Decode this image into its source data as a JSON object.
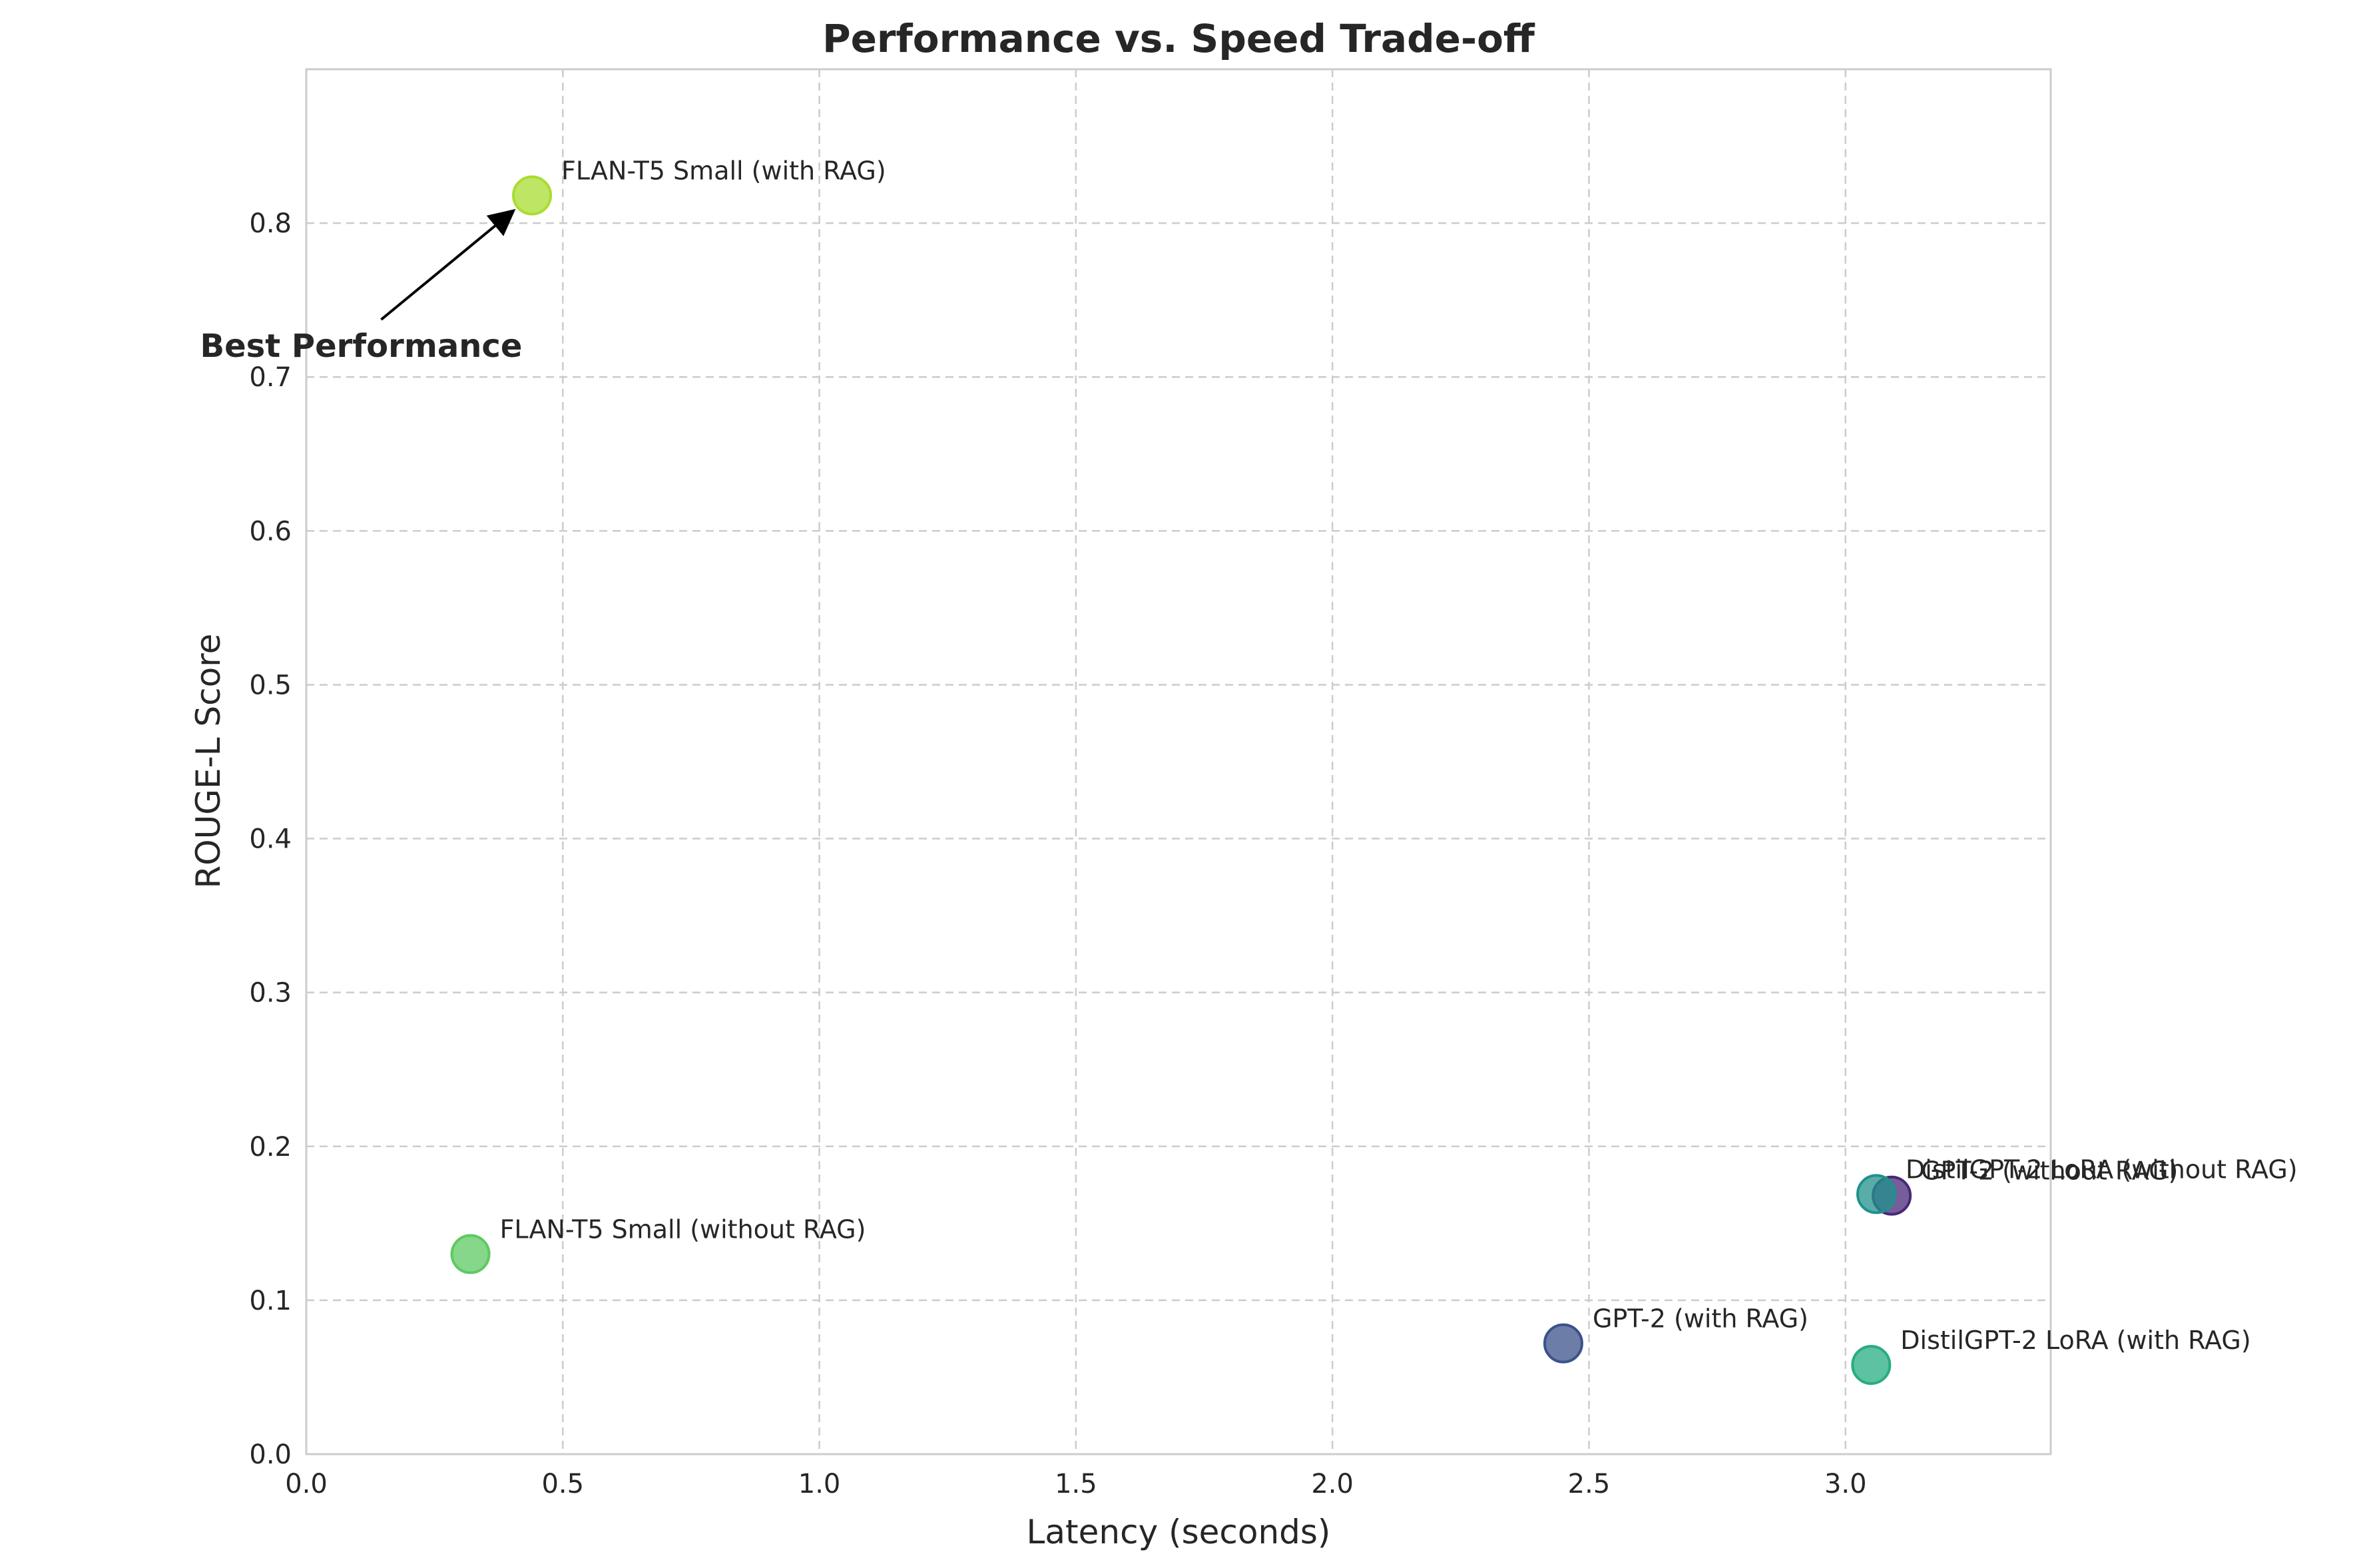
{
  "chart_data": {
    "type": "scatter",
    "title": "Performance vs. Speed Trade-off",
    "xlabel": "Latency (seconds)",
    "ylabel": "ROUGE-L Score",
    "xlim": [
      0,
      3.4
    ],
    "ylim": [
      0,
      0.9
    ],
    "xticks": [
      0.0,
      0.5,
      1.0,
      1.5,
      2.0,
      2.5,
      3.0
    ],
    "xtick_labels": [
      "0.0",
      "0.5",
      "1.0",
      "1.5",
      "2.0",
      "2.5",
      "3.0"
    ],
    "yticks": [
      0.0,
      0.1,
      0.2,
      0.3,
      0.4,
      0.5,
      0.6,
      0.7,
      0.8
    ],
    "ytick_labels": [
      "0.0",
      "0.1",
      "0.2",
      "0.3",
      "0.4",
      "0.5",
      "0.6",
      "0.7",
      "0.8"
    ],
    "grid": true,
    "points": [
      {
        "label": "GPT-2 (without RAG)",
        "x": 3.09,
        "y": 0.168,
        "color": "#482878"
      },
      {
        "label": "GPT-2 (with RAG)",
        "x": 2.45,
        "y": 0.072,
        "color": "#3b528b"
      },
      {
        "label": "DistilGPT-2 LoRA (without RAG)",
        "x": 3.06,
        "y": 0.169,
        "color": "#21918c"
      },
      {
        "label": "DistilGPT-2 LoRA (with RAG)",
        "x": 3.05,
        "y": 0.058,
        "color": "#27ad81"
      },
      {
        "label": "FLAN-T5 Small (without RAG)",
        "x": 0.32,
        "y": 0.13,
        "color": "#5ec962"
      },
      {
        "label": "FLAN-T5 Small (with RAG)",
        "x": 0.44,
        "y": 0.818,
        "color": "#aadc32"
      }
    ],
    "annotation": {
      "text": "Best Performance",
      "target_x": 0.44,
      "target_y": 0.818,
      "text_x": 0.12,
      "text_y": 0.72
    }
  }
}
